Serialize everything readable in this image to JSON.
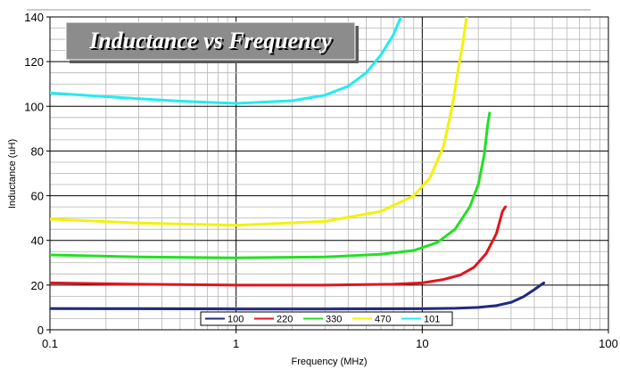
{
  "chart_data": {
    "type": "line",
    "title": "Inductance vs Frequency",
    "xlabel": "Frequency (MHz)",
    "ylabel": "Inductance (uH)",
    "xscale": "log",
    "xlim": [
      0.1,
      100
    ],
    "ylim": [
      0,
      140
    ],
    "x_ticks": [
      "0.1",
      "1",
      "10",
      "100"
    ],
    "y_ticks": [
      "0",
      "20",
      "40",
      "60",
      "80",
      "100",
      "120",
      "140"
    ],
    "grid": true,
    "legend_position": "bottom-center",
    "series": [
      {
        "name": "100",
        "color": "#1f2a80",
        "points": [
          [
            0.1,
            9.5
          ],
          [
            0.3,
            9.4
          ],
          [
            1,
            9.3
          ],
          [
            3,
            9.3
          ],
          [
            10,
            9.4
          ],
          [
            15,
            9.6
          ],
          [
            20,
            10
          ],
          [
            25,
            10.8
          ],
          [
            30,
            12.3
          ],
          [
            35,
            14.8
          ],
          [
            40,
            18
          ],
          [
            45,
            21
          ]
        ]
      },
      {
        "name": "220",
        "color": "#e3141c",
        "points": [
          [
            0.1,
            21
          ],
          [
            0.3,
            20.4
          ],
          [
            1,
            20
          ],
          [
            3,
            20
          ],
          [
            7,
            20.4
          ],
          [
            10,
            21
          ],
          [
            13,
            22.5
          ],
          [
            16,
            24.5
          ],
          [
            19,
            28
          ],
          [
            22,
            34
          ],
          [
            25,
            43
          ],
          [
            27,
            53
          ],
          [
            28,
            55
          ]
        ]
      },
      {
        "name": "330",
        "color": "#22e022",
        "points": [
          [
            0.1,
            33.5
          ],
          [
            0.3,
            32.6
          ],
          [
            1,
            32.2
          ],
          [
            3,
            32.6
          ],
          [
            6,
            33.8
          ],
          [
            9,
            35.5
          ],
          [
            12,
            39
          ],
          [
            15,
            45
          ],
          [
            18,
            55
          ],
          [
            20,
            65
          ],
          [
            21.5,
            78
          ],
          [
            22.5,
            92
          ],
          [
            23,
            97
          ]
        ]
      },
      {
        "name": "470",
        "color": "#f2f20a",
        "points": [
          [
            0.1,
            49.5
          ],
          [
            0.3,
            47.8
          ],
          [
            1,
            46.8
          ],
          [
            3,
            48.5
          ],
          [
            6,
            53
          ],
          [
            9,
            60
          ],
          [
            11,
            68
          ],
          [
            13,
            82
          ],
          [
            14.5,
            100
          ],
          [
            15.5,
            115
          ],
          [
            16.5,
            128
          ],
          [
            17.3,
            140
          ]
        ]
      },
      {
        "name": "101",
        "color": "#22ecf0",
        "points": [
          [
            0.1,
            106
          ],
          [
            0.2,
            104.3
          ],
          [
            0.5,
            102.3
          ],
          [
            1,
            101.3
          ],
          [
            2,
            102.5
          ],
          [
            3,
            105
          ],
          [
            4,
            109
          ],
          [
            5,
            115
          ],
          [
            6,
            123
          ],
          [
            7,
            132
          ],
          [
            7.5,
            138
          ],
          [
            7.7,
            140
          ]
        ]
      }
    ]
  }
}
